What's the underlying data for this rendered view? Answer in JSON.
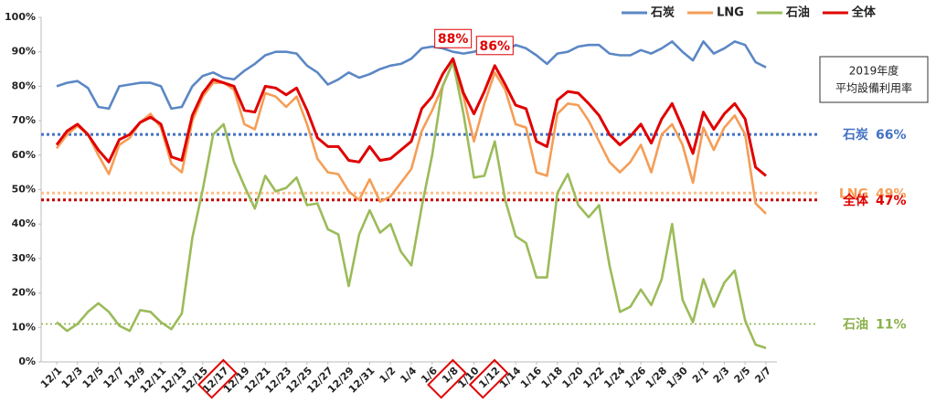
{
  "chart_data": {
    "type": "line",
    "categories": [
      "12/1",
      null,
      "12/3",
      null,
      "12/5",
      null,
      "12/7",
      null,
      "12/9",
      null,
      "12/11",
      null,
      "12/13",
      null,
      "12/15",
      null,
      "12/17",
      null,
      "12/19",
      null,
      "12/21",
      null,
      "12/23",
      null,
      "12/25",
      null,
      "12/27",
      null,
      "12/29",
      null,
      "12/31",
      null,
      "1/2",
      null,
      "1/4",
      null,
      "1/6",
      null,
      "1/8",
      null,
      "1/10",
      null,
      "1/12",
      null,
      "1/14",
      null,
      "1/16",
      null,
      "1/18",
      null,
      "1/20",
      null,
      "1/22",
      null,
      "1/24",
      null,
      "1/26",
      null,
      "1/28",
      null,
      "1/30",
      null,
      "2/1",
      null,
      "2/3",
      null,
      "2/5",
      null,
      "2/7"
    ],
    "highlight_categories": [
      16,
      38,
      42
    ],
    "series": [
      {
        "name": "石炭",
        "color": "#5b87c5",
        "values": [
          80,
          81,
          81.5,
          79.5,
          74,
          73.5,
          80,
          80.5,
          81,
          81,
          80,
          73.5,
          74,
          80,
          83,
          84,
          82.5,
          82,
          84.5,
          86.5,
          89,
          90,
          90,
          89.5,
          86,
          84,
          80.5,
          82,
          84,
          82.5,
          83.5,
          85,
          86,
          86.5,
          88,
          91,
          91.5,
          91,
          90,
          89.5,
          90,
          91,
          91.5,
          90,
          92,
          91,
          89,
          86.5,
          89.5,
          90,
          91.5,
          92,
          92,
          89.5,
          89,
          89,
          90.5,
          89.5,
          91,
          93,
          90,
          87.5,
          93,
          89.5,
          91,
          93,
          92,
          87,
          85.5
        ]
      },
      {
        "name": "LNG",
        "color": "#f59d56",
        "values": [
          62,
          66,
          68.5,
          66,
          60,
          54.5,
          63,
          65,
          69.5,
          72,
          68,
          57.5,
          55,
          70,
          77,
          81,
          81,
          79,
          69,
          67.5,
          78,
          77,
          74,
          77,
          69,
          59,
          55,
          54.5,
          49.5,
          47,
          53,
          46.5,
          48,
          52,
          56,
          67,
          73,
          80,
          87,
          77,
          64,
          75,
          84,
          79,
          69,
          68,
          55,
          54,
          72,
          75,
          74.5,
          70,
          64,
          58,
          55,
          58,
          63,
          55,
          66,
          69,
          63,
          52,
          68,
          61.5,
          68,
          71.5,
          66,
          46,
          43
        ]
      },
      {
        "name": "石油",
        "color": "#9bbb59",
        "values": [
          11.5,
          9,
          11,
          14.5,
          17,
          14.5,
          10.5,
          9,
          15,
          14.5,
          11.5,
          9.5,
          14,
          36,
          50,
          66,
          69,
          58,
          51,
          44.5,
          54,
          49.5,
          50.5,
          53.5,
          45.5,
          46,
          38.5,
          37,
          22,
          37,
          44,
          37.5,
          40,
          32,
          28,
          45,
          60,
          80,
          87,
          72,
          53.5,
          54,
          64,
          47,
          36.5,
          34.5,
          24.5,
          24.5,
          49,
          54.5,
          45.5,
          42,
          45.5,
          28,
          14.5,
          16,
          21,
          16.5,
          24,
          40,
          18,
          11.5,
          24,
          16,
          23,
          26.5,
          12,
          5,
          4
        ]
      },
      {
        "name": "全体",
        "color": "#e00000",
        "values": [
          63,
          67,
          69,
          66,
          61.5,
          58,
          64.5,
          66,
          69.5,
          71,
          69,
          59.5,
          58.5,
          71.5,
          78,
          82,
          81,
          80,
          73,
          72.5,
          80,
          79.5,
          77.5,
          79.5,
          73,
          65,
          62.5,
          62.5,
          58.5,
          58,
          62.5,
          58.5,
          59,
          61.5,
          64,
          73.5,
          77,
          83.5,
          88,
          78,
          72,
          78.5,
          86,
          80.5,
          74.5,
          73.5,
          64,
          62.5,
          76,
          78.5,
          78,
          75,
          71.5,
          66,
          63,
          65.5,
          69,
          63.5,
          70.5,
          75,
          68,
          60.5,
          72.5,
          67.5,
          72,
          75,
          70.5,
          56.5,
          54
        ]
      }
    ],
    "reference_lines": [
      {
        "name": "石炭",
        "value": 66,
        "label": "66%",
        "color": "#4472c4",
        "text_color": "#4472c4"
      },
      {
        "name": "LNG",
        "value": 49,
        "label": "49%",
        "color": "#fbbf8a",
        "text_color": "#f59d56"
      },
      {
        "name": "全体",
        "value": 47,
        "label": "47%",
        "color": "#c00000",
        "text_color": "#e00000"
      },
      {
        "name": "石油",
        "value": 11,
        "label": "11%",
        "color": "#8ab04a",
        "text_color": "#8ab04a"
      }
    ],
    "annotations": [
      {
        "text": "88%",
        "series": 3,
        "index": 38
      },
      {
        "text": "86%",
        "series": 3,
        "index": 42
      }
    ],
    "note": [
      "2019年度",
      "平均設備利用率"
    ],
    "ylim": [
      0,
      100
    ],
    "yticks": [
      {
        "value": 0,
        "label": "0%"
      },
      {
        "value": 10,
        "label": "10%"
      },
      {
        "value": 20,
        "label": "20%"
      },
      {
        "value": 30,
        "label": "30%"
      },
      {
        "value": 40,
        "label": "40%"
      },
      {
        "value": 50,
        "label": "50%"
      },
      {
        "value": 60,
        "label": "60%"
      },
      {
        "value": 70,
        "label": "70%"
      },
      {
        "value": 80,
        "label": "80%"
      },
      {
        "value": 90,
        "label": "90%"
      },
      {
        "value": 100,
        "label": "100%"
      }
    ],
    "grid": false,
    "legend": "top-right"
  }
}
